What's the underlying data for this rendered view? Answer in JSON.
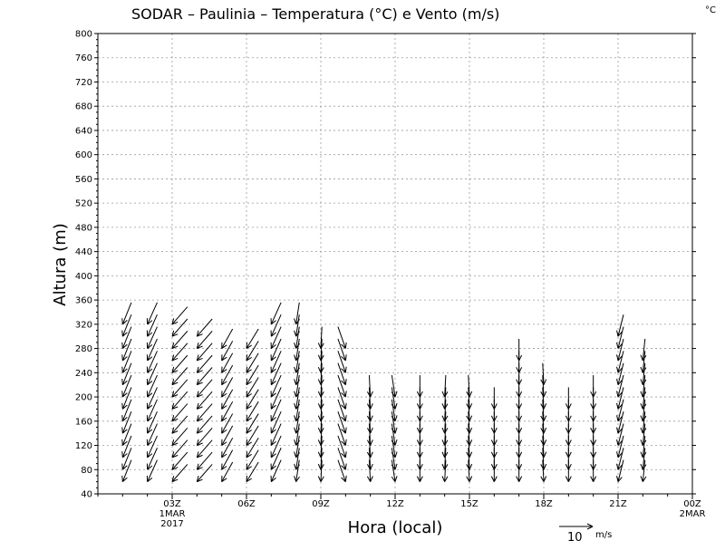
{
  "chart_data": {
    "type": "wind-profile",
    "title": "SODAR – Paulinia – Temperatura (°C) e Vento (m/s)",
    "unit_corner": "°C",
    "xlabel": "Hora (local)",
    "ylabel": "Altura (m)",
    "ylim": [
      40,
      800
    ],
    "xlim": [
      0,
      24
    ],
    "grid": true,
    "y_ticks": [
      40,
      80,
      120,
      160,
      200,
      240,
      280,
      320,
      360,
      400,
      440,
      480,
      520,
      560,
      600,
      640,
      680,
      720,
      760,
      800
    ],
    "x_ticks": [
      {
        "value": 3,
        "label": "03Z",
        "sub1": "1MAR",
        "sub2": "2017"
      },
      {
        "value": 6,
        "label": "06Z",
        "sub1": "",
        "sub2": ""
      },
      {
        "value": 9,
        "label": "09Z",
        "sub1": "",
        "sub2": ""
      },
      {
        "value": 12,
        "label": "12Z",
        "sub1": "",
        "sub2": ""
      },
      {
        "value": 15,
        "label": "15Z",
        "sub1": "",
        "sub2": ""
      },
      {
        "value": 18,
        "label": "18Z",
        "sub1": "",
        "sub2": ""
      },
      {
        "value": 21,
        "label": "21Z",
        "sub1": "",
        "sub2": ""
      },
      {
        "value": 24,
        "label": "00Z",
        "sub1": "2MAR",
        "sub2": ""
      }
    ],
    "reference_vector": {
      "speed": 10,
      "label": "10",
      "unit": "m/s"
    },
    "heights_step": 20,
    "profiles": [
      {
        "hour": 1,
        "top": 320,
        "dx": -0.4,
        "dy": -1.0
      },
      {
        "hour": 2,
        "top": 320,
        "dx": -0.45,
        "dy": -1.0
      },
      {
        "hour": 3,
        "top": 320,
        "dx": -0.7,
        "dy": -0.8
      },
      {
        "hour": 4,
        "top": 300,
        "dx": -0.7,
        "dy": -0.8
      },
      {
        "hour": 5,
        "top": 280,
        "dx": -0.5,
        "dy": -0.9
      },
      {
        "hour": 6,
        "top": 280,
        "dx": -0.55,
        "dy": -0.9
      },
      {
        "hour": 7,
        "top": 320,
        "dx": -0.45,
        "dy": -1.0
      },
      {
        "hour": 8,
        "top": 320,
        "dx": -0.15,
        "dy": -1.0
      },
      {
        "hour": 9,
        "top": 280,
        "dx": -0.05,
        "dy": -1.0
      },
      {
        "hour": 10,
        "top": 280,
        "dx": 0.35,
        "dy": -1.0
      },
      {
        "hour": 11,
        "top": 200,
        "dx": 0.05,
        "dy": -1.0
      },
      {
        "hour": 12,
        "top": 200,
        "dx": 0.15,
        "dy": -1.0
      },
      {
        "hour": 13,
        "top": 200,
        "dx": 0.0,
        "dy": -1.0
      },
      {
        "hour": 14,
        "top": 200,
        "dx": -0.05,
        "dy": -1.0
      },
      {
        "hour": 15,
        "top": 200,
        "dx": 0.05,
        "dy": -1.0
      },
      {
        "hour": 16,
        "top": 180,
        "dx": 0.0,
        "dy": -1.0
      },
      {
        "hour": 17,
        "top": 260,
        "dx": 0.0,
        "dy": -1.0
      },
      {
        "hour": 18,
        "top": 220,
        "dx": 0.05,
        "dy": -1.0
      },
      {
        "hour": 19,
        "top": 180,
        "dx": 0.0,
        "dy": -1.0
      },
      {
        "hour": 20,
        "top": 200,
        "dx": 0.0,
        "dy": -1.0
      },
      {
        "hour": 21,
        "top": 300,
        "dx": -0.25,
        "dy": -1.0
      },
      {
        "hour": 22,
        "top": 260,
        "dx": -0.1,
        "dy": -1.0
      }
    ]
  }
}
